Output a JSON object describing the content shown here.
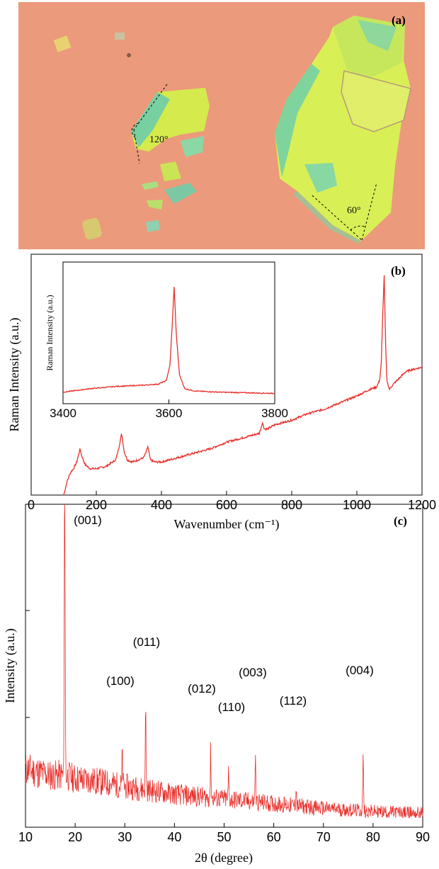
{
  "panel_a": {
    "label": "(a)",
    "angle_left": "120°",
    "angle_right": "60°",
    "colors": {
      "substrate": "#eb9a7b",
      "flake_yellow": "#d8ef52",
      "flake_green": "#7fd49a",
      "dashes": "#000000"
    }
  },
  "chart_data": [
    {
      "type": "line",
      "panel_label": "(b)",
      "title": "",
      "xlabel": "Wavenumber (cm⁻¹)",
      "ylabel": "Raman Intensity (a.u.)",
      "xlim": [
        0,
        1200
      ],
      "ylim": [
        0,
        100
      ],
      "x_ticks": [
        0,
        200,
        400,
        600,
        800,
        1000,
        1200
      ],
      "color": "#e8302b",
      "series": [
        {
          "x": [
            100,
            110,
            120,
            130,
            140,
            150,
            155,
            165,
            180,
            200,
            230,
            260,
            270,
            278,
            285,
            295,
            310,
            330,
            345,
            352,
            358,
            366,
            380,
            400,
            450,
            500,
            550,
            600,
            650,
            700,
            705,
            710,
            716,
            725,
            750,
            800,
            850,
            900,
            950,
            1000,
            1040,
            1060,
            1070,
            1075,
            1080,
            1084,
            1088,
            1092,
            1100,
            1110,
            1130,
            1150,
            1170,
            1200
          ],
          "y": [
            0,
            6,
            10,
            12,
            15,
            21,
            18,
            14,
            12,
            12,
            13,
            16,
            22,
            28,
            20,
            16,
            15,
            16,
            17,
            19,
            22,
            16,
            15,
            15,
            17,
            19,
            21,
            24,
            26,
            28,
            30,
            33,
            30,
            30,
            32,
            34,
            37,
            39,
            42,
            45,
            48,
            49,
            52,
            60,
            85,
            100,
            70,
            52,
            48,
            50,
            53,
            56,
            57,
            58
          ]
        }
      ],
      "grid": false
    },
    {
      "type": "line",
      "panel_label": "inset",
      "title": "",
      "xlabel": "",
      "ylabel": "Raman Intensity (a.u.)",
      "xlim": [
        3400,
        3800
      ],
      "ylim": [
        0,
        100
      ],
      "x_ticks": [
        3400,
        3600,
        3800
      ],
      "color": "#e8302b",
      "series": [
        {
          "x": [
            3400,
            3450,
            3500,
            3550,
            3580,
            3595,
            3602,
            3606,
            3610,
            3614,
            3620,
            3630,
            3650,
            3700,
            3750,
            3800
          ],
          "y": [
            5,
            8,
            10,
            11,
            12,
            15,
            28,
            60,
            96,
            55,
            20,
            8,
            6,
            5,
            4.5,
            4
          ]
        }
      ],
      "grid": false
    },
    {
      "type": "line",
      "panel_label": "(c)",
      "title": "",
      "xlabel": "2θ (degree)",
      "ylabel": "Intensity (a.u.)",
      "xlim": [
        10,
        90
      ],
      "ylim": [
        0,
        100
      ],
      "x_ticks": [
        10,
        20,
        30,
        40,
        50,
        60,
        70,
        80,
        90
      ],
      "color": "#e8302b",
      "peaks": [
        {
          "label": "(001)",
          "x": 17.9,
          "height": 100
        },
        {
          "label": "(100)",
          "x": 29.5,
          "height": 11
        },
        {
          "label": "(011)",
          "x": 34.2,
          "height": 27
        },
        {
          "label": "(012)",
          "x": 47.3,
          "height": 15
        },
        {
          "label": "(110)",
          "x": 50.9,
          "height": 9
        },
        {
          "label": "(003)",
          "x": 56.3,
          "height": 16
        },
        {
          "label": "(112)",
          "x": 64.5,
          "height": 6
        },
        {
          "label": "(004)",
          "x": 78.0,
          "height": 19
        }
      ],
      "background": {
        "x": [
          10,
          15,
          18,
          20,
          25,
          30,
          40,
          50,
          60,
          70,
          80,
          90
        ],
        "y": [
          16,
          14,
          14,
          13,
          12,
          10.5,
          8,
          6.5,
          5,
          3.5,
          2.5,
          2
        ]
      },
      "grid": false
    }
  ]
}
